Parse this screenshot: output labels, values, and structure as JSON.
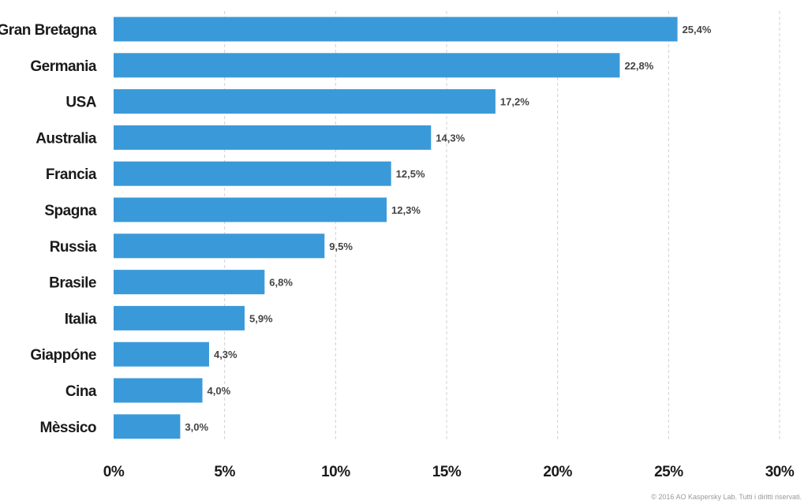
{
  "chart_data": {
    "type": "bar",
    "orientation": "horizontal",
    "categories": [
      "Gran Bretagna",
      "Germania",
      "USA",
      "Australia",
      "Francia",
      "Spagna",
      "Russia",
      "Brasile",
      "Italia",
      "Giappóne",
      "Cina",
      "Mèssico"
    ],
    "values": [
      25.4,
      22.8,
      17.2,
      14.3,
      12.5,
      12.3,
      9.5,
      6.8,
      5.9,
      4.3,
      4.0,
      3.0
    ],
    "value_labels": [
      "25,4%",
      "22,8%",
      "17,2%",
      "14,3%",
      "12,5%",
      "12,3%",
      "9,5%",
      "6,8%",
      "5,9%",
      "4,3%",
      "4,0%",
      "3,0%"
    ],
    "xlim": [
      0,
      30
    ],
    "xticks": [
      0,
      5,
      10,
      15,
      20,
      25,
      30
    ],
    "xtick_labels": [
      "0%",
      "5%",
      "10%",
      "15%",
      "20%",
      "25%",
      "30%"
    ],
    "grid": "vertical dashed",
    "title": "",
    "xlabel": "",
    "ylabel": "",
    "bar_color": "#3a9ad9",
    "grid_color": "#d0d0d0"
  },
  "footer": {
    "copyright": "© 2016 AO Kaspersky Lab. Tutti i diritti riservati."
  }
}
